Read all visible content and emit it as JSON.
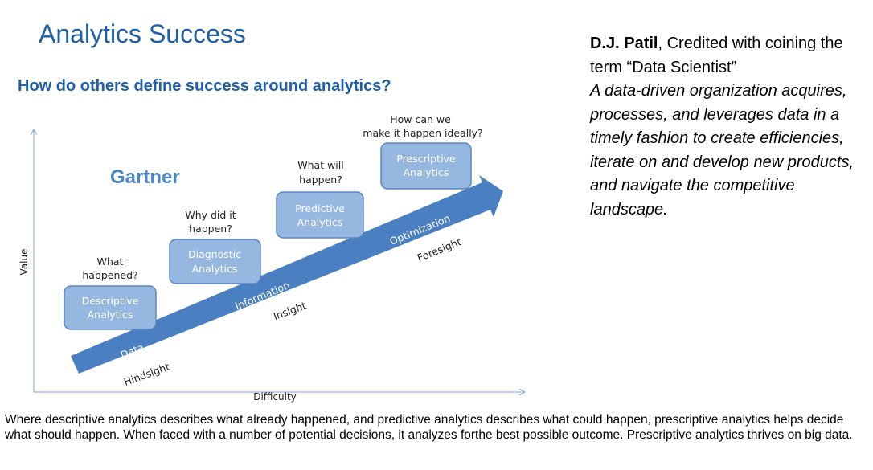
{
  "slide": {
    "title": "Analytics Success",
    "subtitle": "How do others define success around analytics?"
  },
  "quote": {
    "author": "D.J. Patil",
    "credit": ", Credited with coining the term “Data Scientist”",
    "text": "A data-driven organization acquires, processes, and leverages data in a timely fashion to create efficiencies, iterate on and develop new products, and navigate the competitive landscape."
  },
  "diagram": {
    "source": "Gartner",
    "y_axis": "Value",
    "x_axis": "Difficulty",
    "stages": [
      {
        "box": [
          "Descriptive",
          "Analytics"
        ],
        "question": [
          "What",
          "happened?"
        ]
      },
      {
        "box": [
          "Diagnostic",
          "Analytics"
        ],
        "question": [
          "Why did it",
          "happen?"
        ]
      },
      {
        "box": [
          "Predictive",
          "Analytics"
        ],
        "question": [
          "What will",
          "happen?"
        ]
      },
      {
        "box": [
          "Prescriptive",
          "Analytics"
        ],
        "question": [
          "How can we",
          "make it happen ideally?"
        ]
      }
    ],
    "arrow_labels": [
      "Data",
      "Information",
      "Optimization"
    ],
    "sight_labels": [
      "Hindsight",
      "Insight",
      "Foresight"
    ],
    "colors": {
      "box_fill": "#95b7e0",
      "box_border": "#5b86c4",
      "arrow": "#4a7fc1",
      "title": "#1f5fa8"
    }
  },
  "caption": "Where descriptive analytics describes what already happened, and predictive analytics describes what could happen, prescriptive analytics helps decide what should happen. When faced with a number of potential decisions, it analyzes forthe best possible outcome. Prescriptive analytics thrives on big data."
}
